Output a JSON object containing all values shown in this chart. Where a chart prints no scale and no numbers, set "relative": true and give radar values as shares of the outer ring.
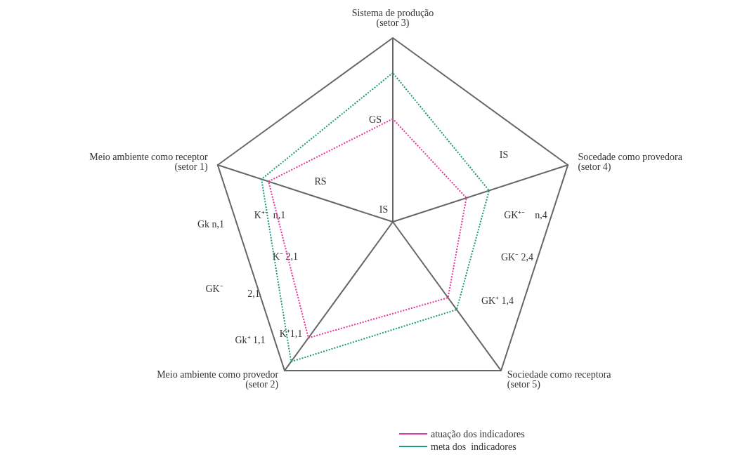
{
  "chart_data": {
    "type": "radar",
    "relative": true,
    "categories": [
      "Sistema de produção\n(setor 3)",
      "Socedade como provedora\n(setor 4)",
      "Sociedade como receptora\n(setor 5)",
      "Meio ambiente como provedor\n(setor 2)",
      "Meio ambiente como receptor\n(setor 1)"
    ],
    "series": [
      {
        "name": "atuação dos indicadores",
        "color": "#e8359b",
        "values": [
          0.56,
          0.42,
          0.51,
          0.78,
          0.71
        ]
      },
      {
        "name": "meta dos  indicadores",
        "color": "#1a9a7a",
        "values": [
          0.81,
          0.55,
          0.59,
          0.94,
          0.75
        ]
      }
    ],
    "annotations": [
      "GS",
      "RS",
      "IS",
      "IS",
      "K⁺⁻  n,1",
      "Gk n,1",
      "K⁻ 2,1",
      "GK⁻",
      "2,1",
      "Gk⁺ 1,1",
      "K⁺1,1",
      "GK⁺⁻    n,4",
      "GK⁻ 2,4",
      "GK⁺ 1,4"
    ],
    "legend": "bottom",
    "marker": "none",
    "line_style": "dotted"
  }
}
